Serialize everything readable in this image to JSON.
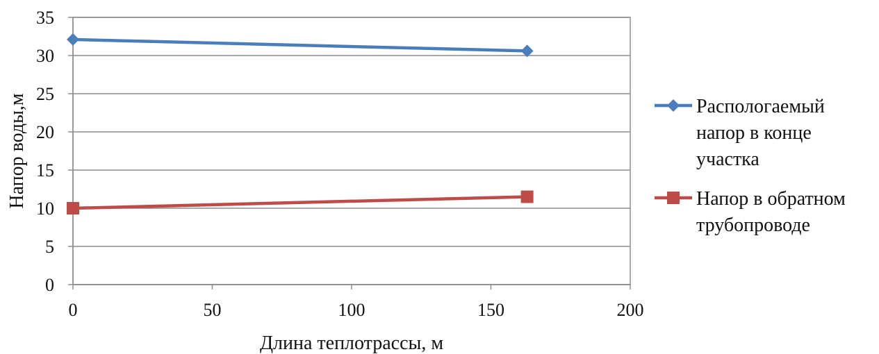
{
  "chart_data": {
    "type": "line",
    "xlabel": "Длина теплотрассы, м",
    "ylabel": "Напор воды,м",
    "xlim": [
      0,
      200
    ],
    "ylim": [
      0,
      35
    ],
    "x_ticks": [
      "0",
      "50",
      "100",
      "150",
      "200"
    ],
    "y_ticks": [
      "0",
      "5",
      "10",
      "15",
      "20",
      "25",
      "30",
      "35"
    ],
    "grid": "horizontal",
    "legend_position": "right",
    "series": [
      {
        "name": "Распологаемый напор в конце участка",
        "legend_lines": [
          "Распологаемый",
          "напор в конце",
          "участка"
        ],
        "color": "#4a7ebb",
        "marker": "diamond",
        "x": [
          0,
          163
        ],
        "y": [
          32.1,
          30.6
        ]
      },
      {
        "name": "Напор в обратном трубопроводе",
        "legend_lines": [
          "Напор в обратном",
          "трубопроводе"
        ],
        "color": "#be4b48",
        "marker": "square",
        "x": [
          0,
          163
        ],
        "y": [
          10.0,
          11.5
        ]
      }
    ]
  }
}
